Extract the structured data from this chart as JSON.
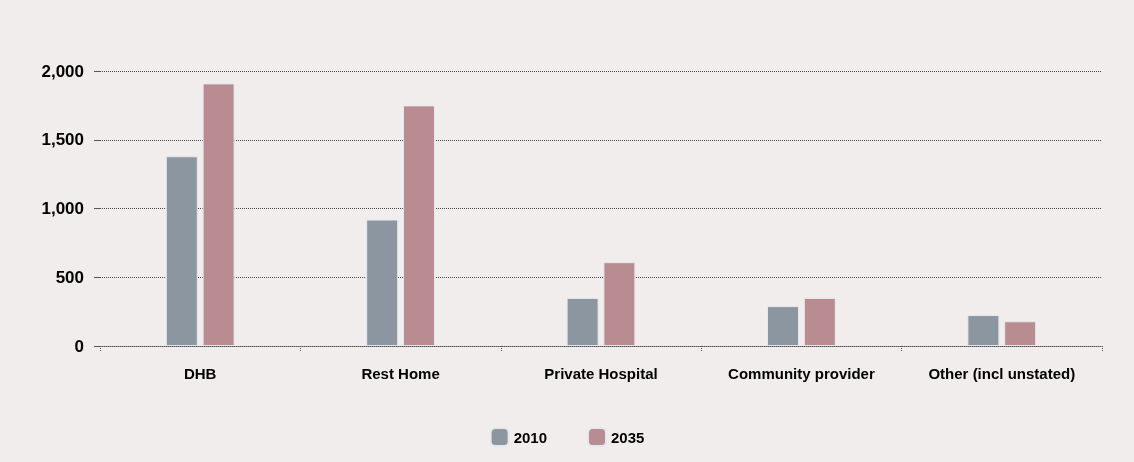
{
  "chart_data": {
    "type": "bar",
    "categories": [
      "DHB",
      "Rest Home",
      "Private Hospital",
      "Community provider",
      "Other (incl unstated)"
    ],
    "series": [
      {
        "name": "2010",
        "color": "#8c96a0",
        "values": [
          1380,
          920,
          350,
          290,
          225
        ]
      },
      {
        "name": "2035",
        "color": "#b98c91",
        "values": [
          1910,
          1750,
          610,
          350,
          180
        ]
      }
    ],
    "ylim": [
      0,
      2000
    ],
    "yticks": [
      0,
      500,
      {
        "value": 1000,
        "label": "1,000"
      },
      {
        "value": 1500,
        "label": "1,500"
      },
      {
        "value": 2000,
        "label": "2,000"
      }
    ],
    "grid": "y",
    "line_style": "dotted",
    "legend": "bottom"
  }
}
